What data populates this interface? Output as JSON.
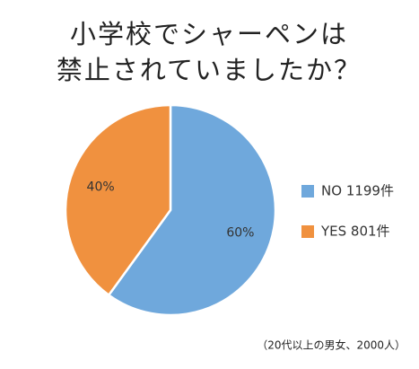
{
  "chart_data": {
    "type": "pie",
    "title": [
      "小学校でシャーペンは",
      "禁止されていましたか？"
    ],
    "categories": [
      "NO 1199件",
      "YES 801件"
    ],
    "values": [
      60,
      40
    ],
    "value_labels": [
      "60%",
      "40%"
    ],
    "colors": [
      "#6fa8dc",
      "#f0913f"
    ],
    "note": "（20代以上の男女、2000人）",
    "legend": "right"
  }
}
